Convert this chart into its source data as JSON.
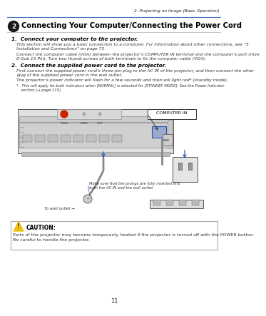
{
  "page_number": "11",
  "chapter_header": "2. Projecting an Image (Basic Operation)",
  "section_title": "Connecting Your Computer/Connecting the Power Cord",
  "step1_title": "1.  Connect your computer to the projector.",
  "step1_body1": "This section will show you a basic connection to a computer. For information about other connections, see “5.\nInstallation and Connections” on page 73.",
  "step1_body2": "Connect the computer cable (VGA) between the projector’s COMPUTER IN terminal and the computer’s port (mini\nD-Sub 15 Pin). Turn two thumb screws of both terminals to fix the computer cable (VGA).",
  "step2_title": "2.  Connect the supplied power cord to the projector.",
  "step2_body1": "First connect the supplied power cord’s three-pin plug to the AC IN of the projector, and then connect the other\nplug of the supplied power cord in the wall outlet.",
  "step2_body2": "The projector’s power indicator will flash for a few seconds and then will light red* (standby mode).",
  "step2_note": "*   This will apply for both indicators when [NORMAL] is selected for [STANDBY MODE]. See the Power Indicator\n    section.(→ page 115)",
  "caution_title": "CAUTION:",
  "caution_text": "Parts of the projector may become temporarily heated if the projector is turned off with the POWER button.\nBe careful to handle the projector.",
  "bg_color": "#ffffff",
  "header_line_color": "#4472c4",
  "body_text_color": "#333333",
  "callout_text": "COMPUTER IN",
  "wall_label": "To wall outlet →",
  "diagram_note": "Make sure that the prongs are fully inserted into\nboth the AC IN and the wall outlet."
}
